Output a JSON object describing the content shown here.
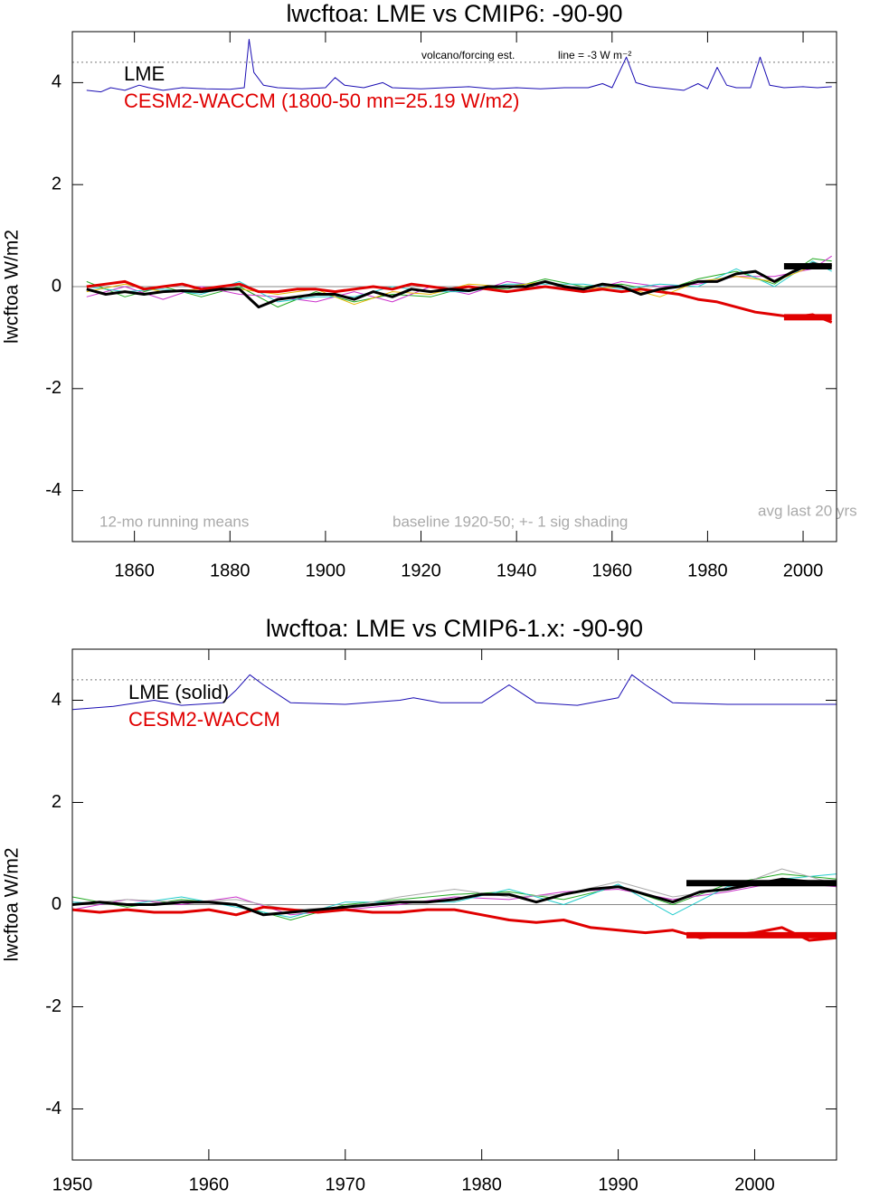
{
  "chart_data": [
    {
      "type": "line",
      "title": "lwcftoa: LME vs CMIP6: -90-90",
      "ylabel": "lwcftoa W/m2",
      "xlim": [
        1847,
        2007
      ],
      "ylim": [
        -5,
        5
      ],
      "xticks": [
        1860,
        1880,
        1900,
        1920,
        1940,
        1960,
        1980,
        2000
      ],
      "yticks": [
        -4,
        -2,
        0,
        2,
        4
      ],
      "ref_line": 4.4,
      "annotations": [
        {
          "text": "LME",
          "color": "#000000"
        },
        {
          "text": "CESM2-WACCM (1800-50 mn=25.19 W/m2)",
          "color": "#e00000"
        },
        {
          "text": "volcano/forcing est.",
          "color": "#000000"
        },
        {
          "text": "line = -3 W m⁻²",
          "color": "#000000"
        },
        {
          "text": "12-mo running means",
          "color": "#aaaaaa"
        },
        {
          "text": "baseline 1920-50; +- 1 sig shading",
          "color": "#aaaaaa"
        },
        {
          "text": "avg last 20 yrs",
          "color": "#aaaaaa"
        }
      ],
      "series": [
        {
          "color": "#22aa22",
          "width": 1,
          "x": [
            1850,
            1858,
            1866,
            1874,
            1882,
            1890,
            1898,
            1906,
            1914,
            1922,
            1930,
            1938,
            1946,
            1954,
            1962,
            1970,
            1978,
            1986,
            1994,
            2002,
            2006
          ],
          "values": [
            0.1,
            -0.2,
            0.0,
            -0.2,
            0.0,
            -0.4,
            -0.1,
            -0.3,
            -0.15,
            -0.2,
            0.0,
            -0.05,
            0.15,
            0.0,
            0.05,
            -0.1,
            0.15,
            0.3,
            0.05,
            0.55,
            0.5
          ]
        },
        {
          "color": "#cc33cc",
          "width": 1,
          "x": [
            1850,
            1858,
            1866,
            1874,
            1882,
            1890,
            1898,
            1906,
            1914,
            1922,
            1930,
            1938,
            1946,
            1954,
            1962,
            1970,
            1978,
            1986,
            1994,
            2002,
            2006
          ],
          "values": [
            -0.2,
            0.0,
            -0.25,
            0.0,
            -0.15,
            -0.2,
            -0.3,
            -0.1,
            -0.3,
            0.0,
            -0.15,
            0.1,
            0.0,
            -0.1,
            0.1,
            0.0,
            0.05,
            0.2,
            0.2,
            0.35,
            0.6
          ]
        },
        {
          "color": "#22cccc",
          "width": 1,
          "x": [
            1850,
            1858,
            1866,
            1874,
            1882,
            1890,
            1898,
            1906,
            1914,
            1922,
            1930,
            1938,
            1946,
            1954,
            1962,
            1970,
            1978,
            1986,
            1994,
            2002,
            2006
          ],
          "values": [
            0.0,
            -0.1,
            -0.05,
            -0.15,
            0.1,
            -0.3,
            -0.2,
            -0.2,
            0.0,
            -0.1,
            -0.1,
            0.05,
            0.05,
            0.05,
            -0.05,
            0.05,
            0.0,
            0.35,
            0.0,
            0.5,
            0.3
          ]
        },
        {
          "color": "#e6b800",
          "width": 1,
          "x": [
            1850,
            1858,
            1866,
            1874,
            1882,
            1890,
            1898,
            1906,
            1914,
            1922,
            1930,
            1938,
            1946,
            1954,
            1962,
            1970,
            1978,
            1986,
            1994,
            2002,
            2006
          ],
          "values": [
            -0.1,
            0.05,
            -0.1,
            -0.05,
            -0.05,
            -0.15,
            -0.05,
            -0.35,
            -0.1,
            -0.15,
            0.05,
            0.0,
            0.1,
            -0.05,
            0.0,
            -0.2,
            0.1,
            0.2,
            0.1,
            0.4,
            0.45
          ]
        },
        {
          "color": "#1a0db3",
          "width": 1,
          "x": [
            1850,
            1853,
            1855,
            1858,
            1861,
            1863,
            1866,
            1870,
            1875,
            1880,
            1883,
            1884,
            1885,
            1887,
            1890,
            1895,
            1900,
            1902,
            1904,
            1908,
            1912,
            1914,
            1920,
            1925,
            1930,
            1935,
            1940,
            1945,
            1950,
            1955,
            1958,
            1960,
            1963,
            1965,
            1968,
            1970,
            1975,
            1978,
            1980,
            1982,
            1984,
            1986,
            1989,
            1991,
            1993,
            1996,
            2000,
            2003,
            2006
          ],
          "values": [
            3.85,
            3.82,
            3.9,
            3.85,
            3.95,
            3.9,
            3.85,
            3.9,
            3.88,
            3.87,
            3.9,
            4.85,
            4.2,
            3.95,
            3.9,
            3.88,
            3.9,
            4.1,
            3.95,
            3.9,
            4.0,
            3.9,
            3.88,
            3.9,
            3.92,
            3.88,
            3.9,
            3.88,
            3.9,
            3.9,
            3.98,
            3.9,
            4.5,
            4.0,
            3.92,
            3.9,
            3.85,
            3.98,
            3.88,
            4.3,
            3.95,
            3.9,
            3.9,
            4.5,
            3.95,
            3.9,
            3.92,
            3.9,
            3.92
          ]
        },
        {
          "color": "#e00000",
          "width": 3,
          "x": [
            1850,
            1854,
            1858,
            1862,
            1866,
            1870,
            1874,
            1878,
            1882,
            1886,
            1890,
            1894,
            1898,
            1902,
            1906,
            1910,
            1914,
            1918,
            1922,
            1926,
            1930,
            1934,
            1938,
            1942,
            1946,
            1950,
            1954,
            1958,
            1962,
            1966,
            1970,
            1974,
            1978,
            1982,
            1986,
            1990,
            1994,
            1998,
            2002,
            2006
          ],
          "values": [
            0.0,
            0.05,
            0.1,
            -0.05,
            0.0,
            0.05,
            -0.05,
            0.0,
            0.05,
            -0.1,
            -0.1,
            -0.05,
            -0.05,
            -0.1,
            -0.05,
            0.0,
            -0.05,
            0.05,
            0.0,
            -0.05,
            0.0,
            -0.05,
            -0.1,
            -0.05,
            0.0,
            -0.05,
            -0.1,
            -0.05,
            -0.1,
            -0.05,
            -0.1,
            -0.15,
            -0.25,
            -0.3,
            -0.4,
            -0.5,
            -0.55,
            -0.6,
            -0.55,
            -0.7
          ]
        },
        {
          "color": "#000000",
          "width": 3,
          "x": [
            1850,
            1854,
            1858,
            1862,
            1866,
            1870,
            1874,
            1878,
            1882,
            1886,
            1890,
            1894,
            1898,
            1902,
            1906,
            1910,
            1914,
            1918,
            1922,
            1926,
            1930,
            1934,
            1938,
            1942,
            1946,
            1950,
            1954,
            1958,
            1962,
            1966,
            1970,
            1974,
            1978,
            1982,
            1986,
            1990,
            1994,
            1998,
            2002,
            2006
          ],
          "values": [
            -0.05,
            -0.15,
            -0.1,
            -0.15,
            -0.1,
            -0.08,
            -0.1,
            -0.05,
            -0.05,
            -0.4,
            -0.25,
            -0.2,
            -0.15,
            -0.15,
            -0.25,
            -0.1,
            -0.2,
            -0.05,
            -0.1,
            -0.05,
            -0.08,
            0.0,
            0.0,
            0.0,
            0.1,
            0.0,
            -0.05,
            0.05,
            0.0,
            -0.15,
            -0.05,
            0.0,
            0.1,
            0.1,
            0.25,
            0.3,
            0.1,
            0.3,
            0.45,
            0.4
          ]
        }
      ],
      "avg_lines": [
        {
          "color": "#e00000",
          "value": -0.6,
          "x": [
            1996,
            2006
          ]
        },
        {
          "color": "#000000",
          "value": 0.4,
          "x": [
            1996,
            2006
          ]
        }
      ]
    },
    {
      "type": "line",
      "title": "lwcftoa: LME vs CMIP6-1.x: -90-90",
      "ylabel": "lwcftoa W/m2",
      "xlim": [
        1950,
        2006
      ],
      "ylim": [
        -5,
        5
      ],
      "xticks": [
        1950,
        1960,
        1970,
        1980,
        1990,
        2000
      ],
      "yticks": [
        -4,
        -2,
        0,
        2,
        4
      ],
      "ref_line": 4.4,
      "annotations": [
        {
          "text": "LME (solid)",
          "color": "#000000"
        },
        {
          "text": "CESM2-WACCM",
          "color": "#e00000"
        }
      ],
      "series": [
        {
          "color": "#22aa22",
          "width": 1,
          "x": [
            1950,
            1954,
            1958,
            1962,
            1966,
            1970,
            1974,
            1978,
            1982,
            1986,
            1990,
            1994,
            1998,
            2002,
            2006
          ],
          "values": [
            0.15,
            -0.05,
            0.1,
            0.0,
            -0.3,
            0.0,
            0.1,
            0.2,
            0.25,
            0.1,
            0.35,
            0.0,
            0.4,
            0.6,
            0.5
          ]
        },
        {
          "color": "#cc33cc",
          "width": 1,
          "x": [
            1950,
            1954,
            1958,
            1962,
            1966,
            1970,
            1974,
            1978,
            1982,
            1986,
            1990,
            1994,
            1998,
            2002,
            2006
          ],
          "values": [
            -0.1,
            0.1,
            0.0,
            0.15,
            -0.2,
            -0.1,
            0.0,
            0.15,
            0.1,
            0.25,
            0.3,
            0.1,
            0.25,
            0.45,
            0.35
          ]
        },
        {
          "color": "#22cccc",
          "width": 1,
          "x": [
            1950,
            1954,
            1958,
            1962,
            1966,
            1970,
            1974,
            1978,
            1982,
            1986,
            1990,
            1994,
            1998,
            2002,
            2006
          ],
          "values": [
            0.05,
            0.0,
            0.15,
            -0.05,
            -0.25,
            0.05,
            0.05,
            0.05,
            0.3,
            0.0,
            0.4,
            -0.2,
            0.35,
            0.5,
            0.6
          ]
        },
        {
          "color": "#aaaaaa",
          "width": 1,
          "x": [
            1950,
            1954,
            1958,
            1962,
            1966,
            1970,
            1974,
            1978,
            1982,
            1986,
            1990,
            1994,
            1998,
            2002,
            2006
          ],
          "values": [
            0.0,
            0.1,
            0.05,
            0.1,
            -0.1,
            -0.05,
            0.15,
            0.3,
            0.15,
            0.2,
            0.45,
            0.15,
            0.3,
            0.7,
            0.4
          ]
        },
        {
          "color": "#1a0db3",
          "width": 1,
          "x": [
            1950,
            1953,
            1956,
            1958,
            1961,
            1962,
            1963,
            1964,
            1966,
            1970,
            1974,
            1975,
            1977,
            1980,
            1982,
            1984,
            1987,
            1990,
            1991,
            1992,
            1994,
            1998,
            2002,
            2006
          ],
          "values": [
            3.82,
            3.88,
            4.0,
            3.9,
            3.95,
            4.2,
            4.5,
            4.3,
            3.95,
            3.92,
            4.0,
            4.05,
            3.95,
            3.95,
            4.3,
            3.95,
            3.9,
            4.05,
            4.5,
            4.3,
            3.95,
            3.92,
            3.92,
            3.92
          ]
        },
        {
          "color": "#e00000",
          "width": 3,
          "x": [
            1950,
            1952,
            1954,
            1956,
            1958,
            1960,
            1962,
            1964,
            1966,
            1968,
            1970,
            1972,
            1974,
            1976,
            1978,
            1980,
            1982,
            1984,
            1986,
            1988,
            1990,
            1992,
            1994,
            1996,
            1998,
            2000,
            2002,
            2004,
            2006
          ],
          "values": [
            -0.1,
            -0.15,
            -0.1,
            -0.15,
            -0.15,
            -0.1,
            -0.2,
            -0.05,
            -0.1,
            -0.15,
            -0.1,
            -0.15,
            -0.15,
            -0.1,
            -0.1,
            -0.2,
            -0.3,
            -0.35,
            -0.3,
            -0.45,
            -0.5,
            -0.55,
            -0.5,
            -0.65,
            -0.6,
            -0.55,
            -0.45,
            -0.7,
            -0.65
          ]
        },
        {
          "color": "#000000",
          "width": 3,
          "x": [
            1950,
            1952,
            1954,
            1956,
            1958,
            1960,
            1962,
            1964,
            1966,
            1968,
            1970,
            1972,
            1974,
            1976,
            1978,
            1980,
            1982,
            1984,
            1986,
            1988,
            1990,
            1992,
            1994,
            1996,
            1998,
            2000,
            2002,
            2004,
            2006
          ],
          "values": [
            0.0,
            0.05,
            0.0,
            0.0,
            0.05,
            0.05,
            0.0,
            -0.2,
            -0.15,
            -0.1,
            -0.05,
            0.0,
            0.05,
            0.05,
            0.1,
            0.2,
            0.2,
            0.05,
            0.2,
            0.3,
            0.35,
            0.2,
            0.05,
            0.25,
            0.3,
            0.4,
            0.5,
            0.45,
            0.45
          ]
        }
      ],
      "avg_lines": [
        {
          "color": "#e00000",
          "value": -0.6,
          "x": [
            1995,
            2006
          ]
        },
        {
          "color": "#000000",
          "value": 0.42,
          "x": [
            1995,
            2006
          ]
        }
      ]
    }
  ]
}
